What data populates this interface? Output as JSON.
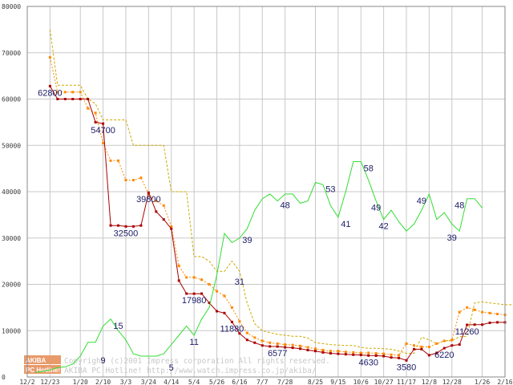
{
  "chart_data": {
    "type": "line",
    "title": "",
    "xlabel": "",
    "ylabel": "",
    "ylim": [
      0,
      80000
    ],
    "yticks": [
      0,
      10000,
      20000,
      30000,
      40000,
      50000,
      60000,
      70000,
      80000
    ],
    "ytick_labels": [
      "0",
      "10000",
      "20000",
      "30000",
      "40000",
      "50000",
      "60000",
      "70000",
      "80000"
    ],
    "grid": true,
    "x_ticks": [
      {
        "label": "12/2",
        "pos": 0
      },
      {
        "label": "12/23",
        "pos": 3
      },
      {
        "label": "1/20",
        "pos": 7
      },
      {
        "label": "2/10",
        "pos": 10
      },
      {
        "label": "3/3",
        "pos": 13
      },
      {
        "label": "3/24",
        "pos": 16
      },
      {
        "label": "4/14",
        "pos": 19
      },
      {
        "label": "5/4",
        "pos": 22
      },
      {
        "label": "5/26",
        "pos": 25
      },
      {
        "label": "6/16",
        "pos": 28
      },
      {
        "label": "7/7",
        "pos": 31
      },
      {
        "label": "7/28",
        "pos": 34
      },
      {
        "label": "8/25",
        "pos": 38
      },
      {
        "label": "9/15",
        "pos": 41
      },
      {
        "label": "10/6",
        "pos": 44
      },
      {
        "label": "10/27",
        "pos": 47
      },
      {
        "label": "11/17",
        "pos": 50
      },
      {
        "label": "12/8",
        "pos": 53
      },
      {
        "label": "12/28",
        "pos": 56
      },
      {
        "label": "1/26",
        "pos": 60
      },
      {
        "label": "2/16",
        "pos": 63
      }
    ],
    "series": [
      {
        "name": "",
        "color": "#ccaa00",
        "style": "dashed",
        "values": [
          null,
          null,
          null,
          75000,
          63000,
          63000,
          63000,
          63000,
          60000,
          59000,
          55500,
          55500,
          55500,
          55500,
          50000,
          50000,
          50000,
          50000,
          50000,
          40000,
          40000,
          40000,
          26000,
          26000,
          25000,
          22800,
          22800,
          25000,
          22800,
          16000,
          11500,
          10000,
          9600,
          9200,
          9000,
          8800,
          8800,
          8400,
          7400,
          7200,
          7000,
          6900,
          6800,
          6800,
          6400,
          6200,
          6200,
          6100,
          6000,
          5600,
          5100,
          5100,
          8600,
          8000,
          7200,
          7800,
          7800,
          8700,
          8800,
          16000,
          16200,
          16000,
          15800,
          15600,
          15600
        ]
      },
      {
        "name": "",
        "color": "#ff8800",
        "style": "dotted",
        "values": [
          null,
          null,
          null,
          69000,
          61500,
          61500,
          61500,
          61500,
          58000,
          57000,
          50500,
          46700,
          46700,
          42500,
          42500,
          43000,
          39500,
          38000,
          37000,
          32500,
          24000,
          21500,
          21500,
          21000,
          20000,
          18500,
          17500,
          15000,
          12000,
          9500,
          8500,
          7800,
          7400,
          7200,
          7000,
          6900,
          6700,
          6400,
          6100,
          5800,
          5600,
          5600,
          5400,
          5300,
          5200,
          5200,
          5100,
          5000,
          4800,
          4700,
          7200,
          6800,
          6500,
          6500,
          7200,
          7800,
          8000,
          14000,
          15000,
          14500,
          14000,
          13800,
          13600,
          13400
        ]
      },
      {
        "name": "",
        "color": "#aa0000",
        "style": "solid-markers",
        "values": [
          null,
          null,
          null,
          62800,
          60000,
          60000,
          60000,
          60000,
          60000,
          55000,
          54700,
          32700,
          32700,
          32500,
          32500,
          32700,
          39800,
          35700,
          34000,
          32000,
          20800,
          18000,
          17980,
          18000,
          16000,
          14200,
          13800,
          11880,
          9400,
          8000,
          7400,
          6800,
          6600,
          6577,
          6400,
          6300,
          6100,
          5800,
          5600,
          5300,
          5100,
          5000,
          4900,
          4800,
          4750,
          4630,
          4600,
          4500,
          4200,
          4100,
          3580,
          6000,
          6000,
          4700,
          5200,
          6220,
          6800,
          7000,
          11260,
          11300,
          11300,
          11700,
          11800,
          11800
        ]
      },
      {
        "name": "",
        "color": "#33dd33",
        "style": "solid",
        "values": [
          null,
          1000,
          1200,
          1500,
          2000,
          2200,
          2800,
          4500,
          7500,
          7500,
          11000,
          12500,
          10000,
          8000,
          5000,
          4500,
          4500,
          4500,
          5000,
          7000,
          9000,
          11000,
          9000,
          12500,
          15000,
          22000,
          31000,
          29000,
          30000,
          32000,
          36000,
          38500,
          39500,
          38000,
          39500,
          39500,
          37500,
          38000,
          42000,
          41500,
          37000,
          34500,
          40000,
          46500,
          46500,
          42500,
          38000,
          34000,
          36000,
          33500,
          31500,
          33000,
          36000,
          39500,
          34000,
          35500,
          33000,
          31500,
          38500,
          38500,
          36500
        ]
      }
    ],
    "annotations": [
      {
        "text": "62800",
        "x": 3,
        "y": 62800
      },
      {
        "text": "54700",
        "x": 10,
        "y": 54700
      },
      {
        "text": "32500",
        "x": 13,
        "y": 32500
      },
      {
        "text": "39800",
        "x": 16,
        "y": 39800
      },
      {
        "text": "17980",
        "x": 22,
        "y": 17980
      },
      {
        "text": "11880",
        "x": 27,
        "y": 11880
      },
      {
        "text": "6577",
        "x": 33,
        "y": 6577
      },
      {
        "text": "4630",
        "x": 45,
        "y": 4630
      },
      {
        "text": "3580",
        "x": 50,
        "y": 3580
      },
      {
        "text": "6220",
        "x": 55,
        "y": 6220
      },
      {
        "text": "11260",
        "x": 58,
        "y": 11260
      },
      {
        "text": "9",
        "x": 10,
        "y": 5000
      },
      {
        "text": "15",
        "x": 12,
        "y": 12500
      },
      {
        "text": "5",
        "x": 19,
        "y": 3500
      },
      {
        "text": "11",
        "x": 22,
        "y": 9000
      },
      {
        "text": "31",
        "x": 28,
        "y": 22000
      },
      {
        "text": "39",
        "x": 29,
        "y": 31000
      },
      {
        "text": "48",
        "x": 34,
        "y": 38500
      },
      {
        "text": "53",
        "x": 40,
        "y": 42000
      },
      {
        "text": "41",
        "x": 42,
        "y": 34500
      },
      {
        "text": "58",
        "x": 45,
        "y": 46500
      },
      {
        "text": "49",
        "x": 46,
        "y": 38000
      },
      {
        "text": "42",
        "x": 47,
        "y": 34000
      },
      {
        "text": "49",
        "x": 52,
        "y": 39500
      },
      {
        "text": "39",
        "x": 56,
        "y": 31500
      },
      {
        "text": "48",
        "x": 57,
        "y": 38500
      }
    ]
  },
  "watermark": {
    "line1": "Copyright (c)2001 Impress corporation All rights reserved.",
    "line2": "AKIBA PC Hotline! http://www.watch.impress.co.jp/akiba/"
  },
  "logo": {
    "top": "AKIBA",
    "bottom": "PC Hotline!"
  }
}
